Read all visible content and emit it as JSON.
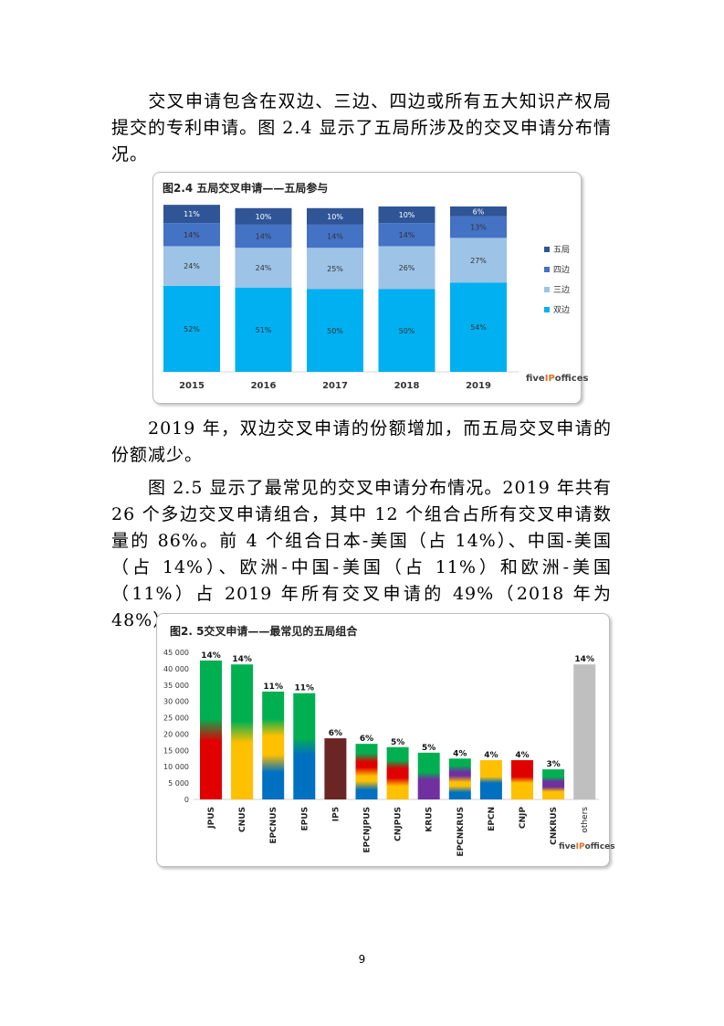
{
  "paragraphs": {
    "p1": "交叉申请包含在双边、三边、四边或所有五大知识产权局提交的专利申请。图 2.4 显示了五局所涉及的交叉申请分布情况。",
    "p2": "2019 年，双边交叉申请的份额增加，而五局交叉申请的份额减少。",
    "p3": "图 2.5 显示了最常见的交叉申请分布情况。2019 年共有 26 个多边交叉申请组合，其中 12 个组合占所有交叉申请数量的 86%。前 4 个组合日本-美国（占 14%）、中国-美国（占 14%）、欧洲-中国-美国（占 11%）和欧洲-美国（11%）占 2019 年所有交叉申请的 49%（2018 年为 48%）。"
  },
  "page_number": "9",
  "brand": {
    "logo_a": "five",
    "logo_b": "IP",
    "logo_c": "offices"
  },
  "chart_data": [
    {
      "type": "bar",
      "stacked": true,
      "percent": true,
      "title": "图2.4 五局交叉申请——五局参与",
      "categories": [
        "2015",
        "2016",
        "2017",
        "2018",
        "2019"
      ],
      "series": [
        {
          "name": "双边",
          "color": "#00b0f0",
          "values": [
            52,
            51,
            50,
            50,
            54
          ],
          "labels": [
            "52%",
            "51%",
            "50%",
            "50%",
            "54%"
          ]
        },
        {
          "name": "三边",
          "color": "#9dc3e6",
          "values": [
            24,
            24,
            25,
            26,
            27
          ],
          "labels": [
            "24%",
            "24%",
            "25%",
            "26%",
            "27%"
          ]
        },
        {
          "name": "四边",
          "color": "#4472c4",
          "values": [
            14,
            14,
            14,
            14,
            13
          ],
          "labels": [
            "14%",
            "14%",
            "14%",
            "14%",
            "13%"
          ]
        },
        {
          "name": "五局",
          "color": "#2f5597",
          "values": [
            11,
            10,
            10,
            10,
            6
          ],
          "labels": [
            "11%",
            "10%",
            "10%",
            "10%",
            "6%"
          ]
        }
      ],
      "legend_order": [
        "五局",
        "四边",
        "三边",
        "双边"
      ],
      "legend_position": "right",
      "ylim": [
        0,
        100
      ]
    },
    {
      "type": "bar",
      "title": "图2. 5交叉申请——最常见的五局组合",
      "categories": [
        "JPUS",
        "CNUS",
        "EPCNUS",
        "EPUS",
        "IP5",
        "EPCNJPUS",
        "CNJPUS",
        "KRUS",
        "EPCNKRUS",
        "EPCN",
        "CNJP",
        "CNKRUS",
        "others"
      ],
      "values": [
        42500,
        41300,
        33000,
        32500,
        18700,
        17000,
        16000,
        14300,
        12500,
        12000,
        12000,
        9200,
        41300
      ],
      "labels": [
        "14%",
        "14%",
        "11%",
        "11%",
        "6%",
        "6%",
        "5%",
        "5%",
        "4%",
        "4%",
        "4%",
        "3%",
        "14%"
      ],
      "yticks": [
        "0",
        "5 000",
        "10 000",
        "15 000",
        "20 000",
        "25 000",
        "30 000",
        "35 000",
        "40 000",
        "45 000"
      ],
      "ylim": [
        0,
        45000
      ],
      "colors": {
        "JPUS": [
          "#e00000",
          "#00b050"
        ],
        "CNUS": [
          "#ffc000",
          "#00b050"
        ],
        "EPCNUS": [
          "#0070c0",
          "#ffc000",
          "#00b050"
        ],
        "EPUS": [
          "#0070c0",
          "#00b050"
        ],
        "IP5": [
          "#6b2525"
        ],
        "EPCNJPUS": [
          "#0070c0",
          "#ffc000",
          "#e00000",
          "#00b050"
        ],
        "CNJPUS": [
          "#ffc000",
          "#e00000",
          "#00b050"
        ],
        "KRUS": [
          "#7030a0",
          "#00b050"
        ],
        "EPCNKRUS": [
          "#0070c0",
          "#ffc000",
          "#7030a0",
          "#00b050"
        ],
        "EPCN": [
          "#0070c0",
          "#ffc000"
        ],
        "CNJP": [
          "#ffc000",
          "#e00000"
        ],
        "CNKRUS": [
          "#ffc000",
          "#7030a0",
          "#00b050"
        ],
        "others": [
          "#bfbfbf"
        ]
      }
    }
  ]
}
